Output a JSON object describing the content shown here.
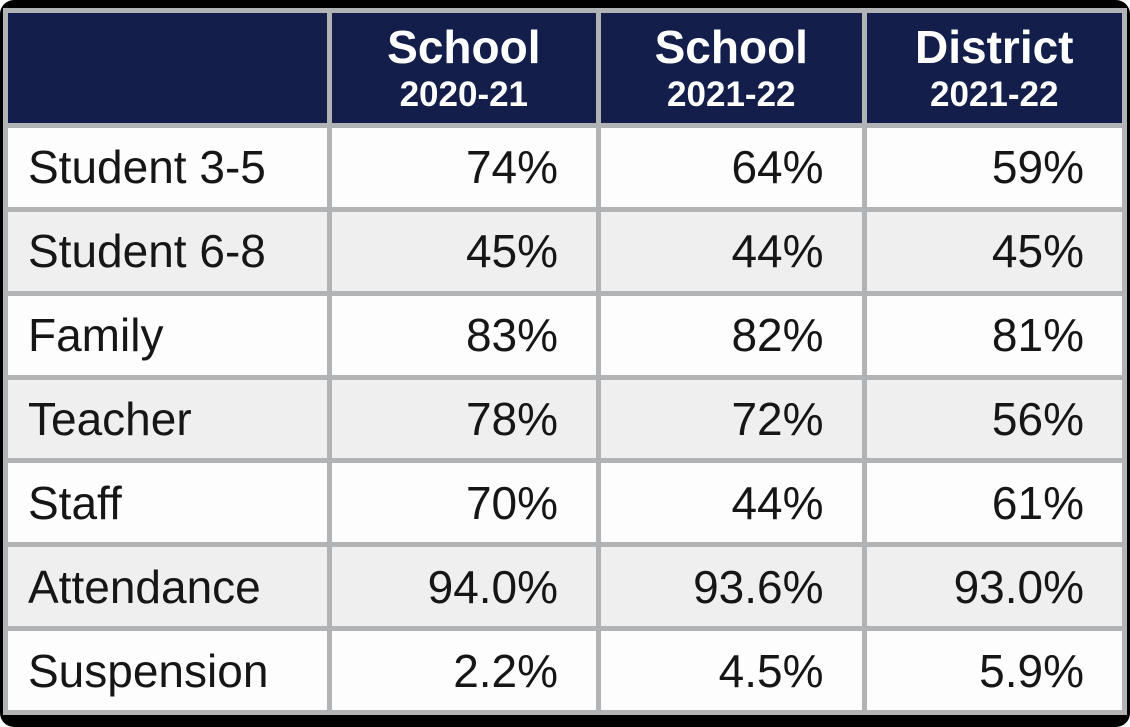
{
  "table": {
    "columns": [
      {
        "title": "",
        "subtitle": ""
      },
      {
        "title": "School",
        "subtitle": "2020-21"
      },
      {
        "title": "School",
        "subtitle": "2021-22"
      },
      {
        "title": "District",
        "subtitle": "2021-22"
      }
    ],
    "rows": [
      {
        "label": "Student 3-5",
        "values": [
          "74%",
          "64%",
          "59%"
        ]
      },
      {
        "label": "Student 6-8",
        "values": [
          "45%",
          "44%",
          "45%"
        ]
      },
      {
        "label": "Family",
        "values": [
          "83%",
          "82%",
          "81%"
        ]
      },
      {
        "label": "Teacher",
        "values": [
          "78%",
          "72%",
          "56%"
        ]
      },
      {
        "label": "Staff",
        "values": [
          "70%",
          "44%",
          "61%"
        ]
      },
      {
        "label": "Attendance",
        "values": [
          "94.0%",
          "93.6%",
          "93.0%"
        ]
      },
      {
        "label": "Suspension",
        "values": [
          "2.2%",
          "4.5%",
          "5.9%"
        ]
      }
    ]
  },
  "colors": {
    "header_bg": "#131F4A",
    "header_text": "#FFFFFF",
    "grid_border": "#B1B3B5",
    "row_white": "#FDFDFD",
    "row_alt": "#EFEFEF",
    "frame": "#000000",
    "body_text": "#161616"
  },
  "chart_data": {
    "type": "table",
    "unit": "%",
    "columns": [
      "School 2020-21",
      "School 2021-22",
      "District 2021-22"
    ],
    "categories": [
      "Student 3-5",
      "Student 6-8",
      "Family",
      "Teacher",
      "Staff",
      "Attendance",
      "Suspension"
    ],
    "series": [
      {
        "name": "School 2020-21",
        "values": [
          74,
          45,
          83,
          78,
          70,
          94.0,
          2.2
        ]
      },
      {
        "name": "School 2021-22",
        "values": [
          64,
          44,
          82,
          72,
          44,
          93.6,
          4.5
        ]
      },
      {
        "name": "District 2021-22",
        "values": [
          59,
          45,
          81,
          56,
          61,
          93.0,
          5.9
        ]
      }
    ]
  }
}
